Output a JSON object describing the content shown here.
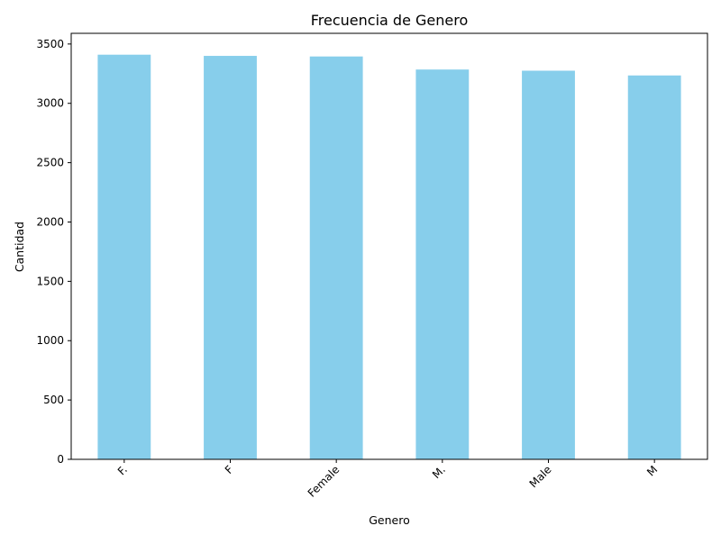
{
  "chart_data": {
    "type": "bar",
    "title": "Frecuencia de Genero",
    "xlabel": "Genero",
    "ylabel": "Cantidad",
    "categories": [
      "F.",
      "F",
      "Female",
      "M.",
      "Male",
      "M"
    ],
    "values": [
      3410,
      3400,
      3395,
      3285,
      3275,
      3235
    ],
    "ylim": [
      0,
      3590
    ],
    "yticks": [
      0,
      500,
      1000,
      1500,
      2000,
      2500,
      3000,
      3500
    ],
    "grid": false,
    "bar_color": "#87ceeb",
    "tick_label_rotation": 45
  }
}
